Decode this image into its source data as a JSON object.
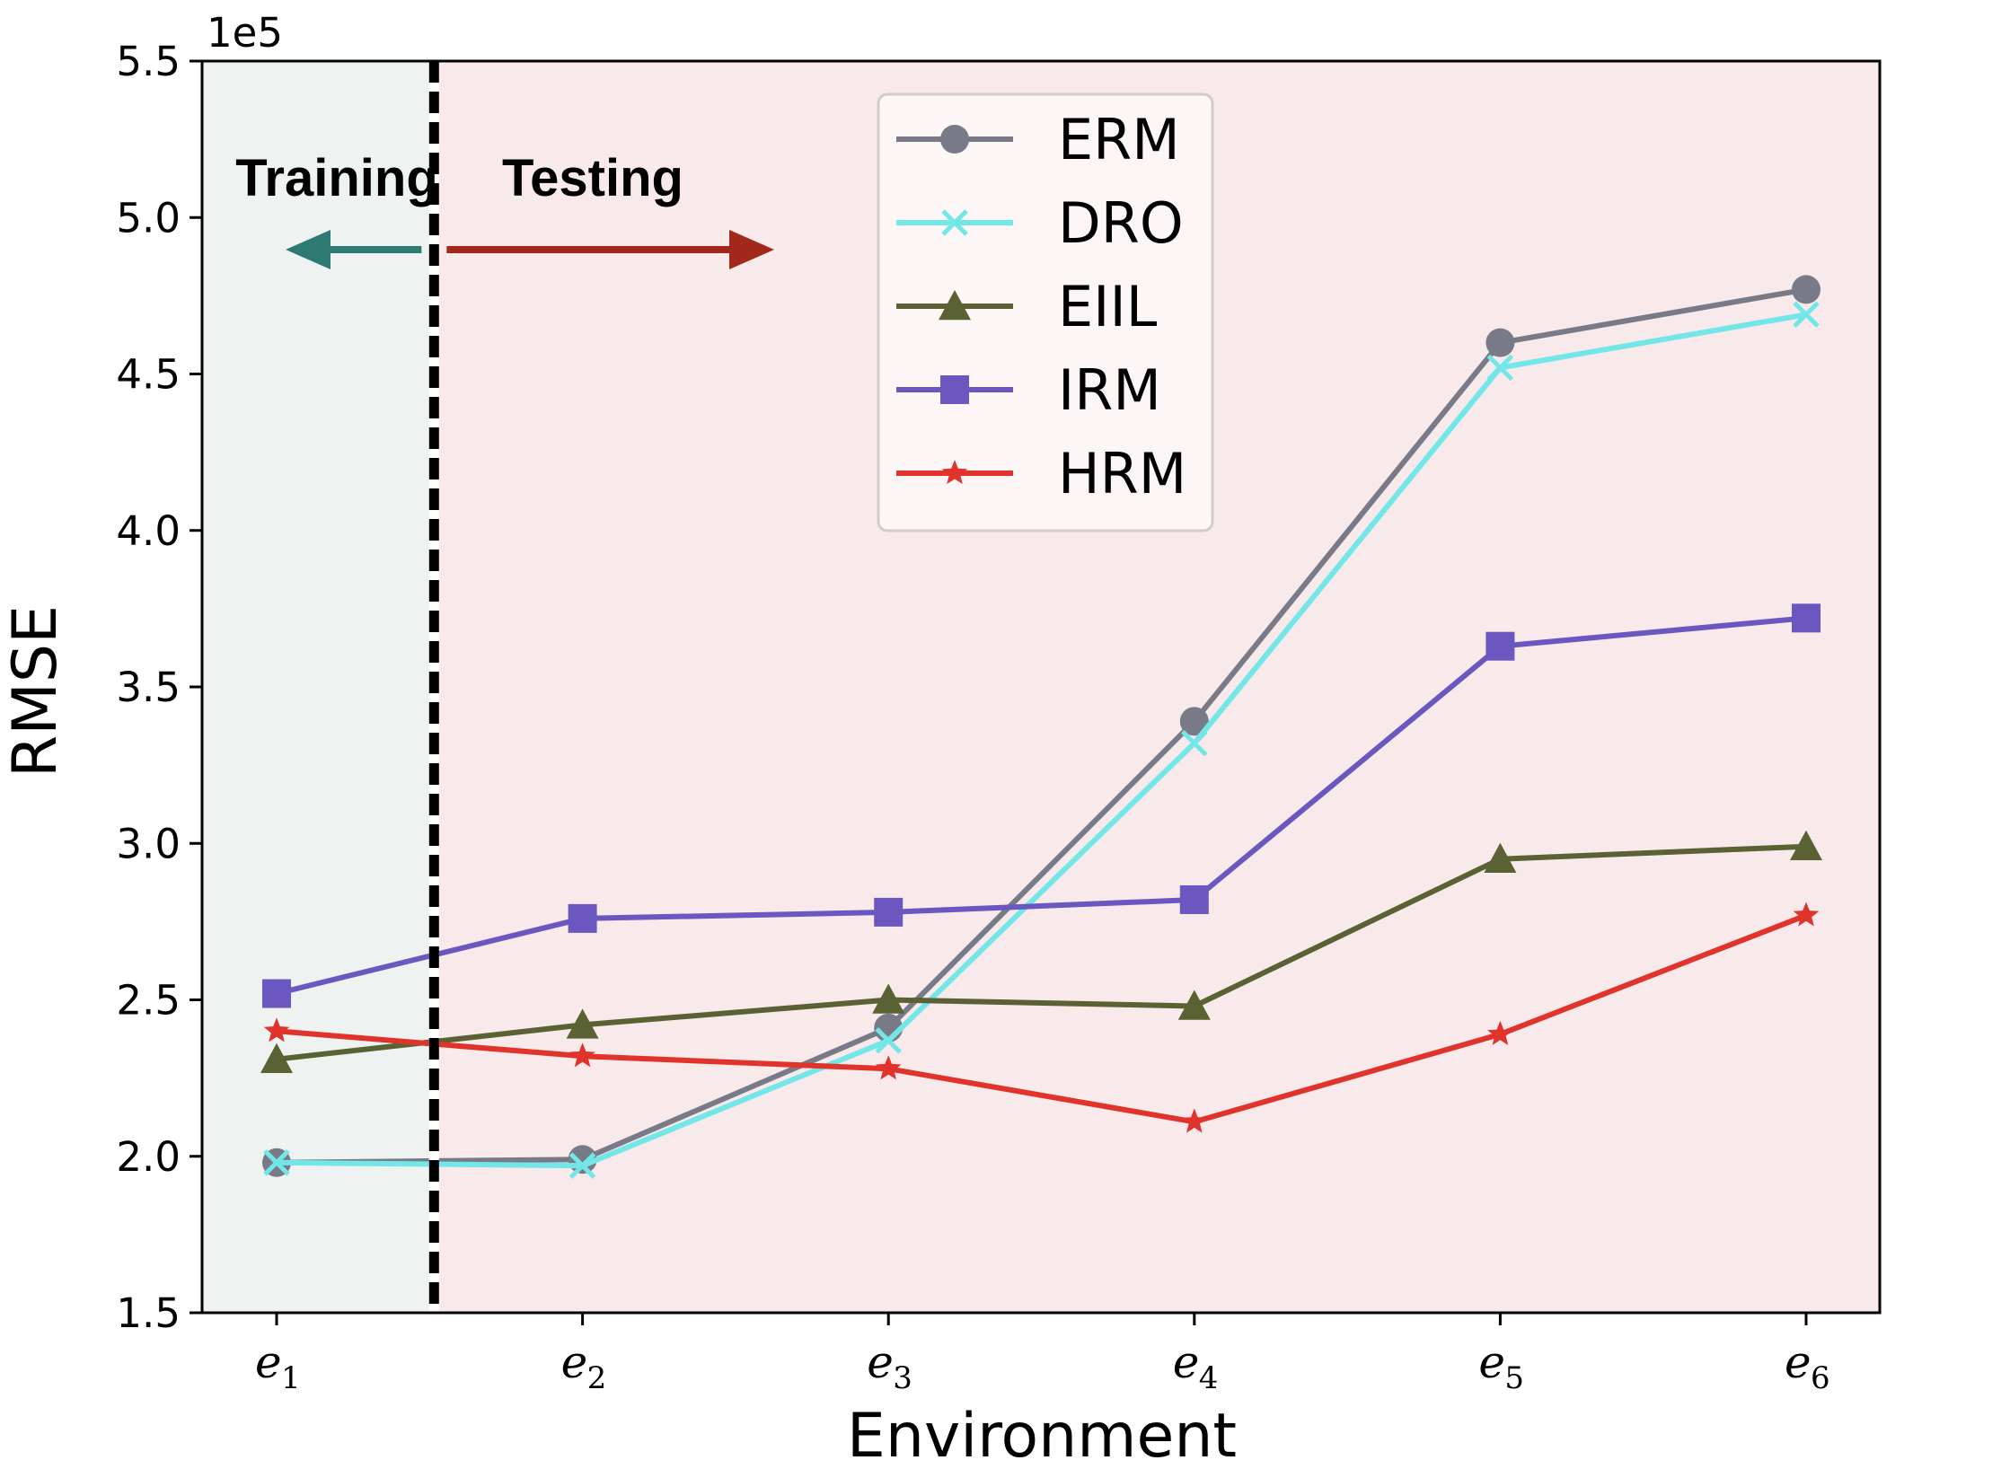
{
  "chart_data": {
    "type": "line",
    "xlabel": "Environment",
    "ylabel": "RMSE",
    "y_exponent_label": "1e5",
    "categories": [
      {
        "base": "e",
        "sub": "1"
      },
      {
        "base": "e",
        "sub": "2"
      },
      {
        "base": "e",
        "sub": "3"
      },
      {
        "base": "e",
        "sub": "4"
      },
      {
        "base": "e",
        "sub": "5"
      },
      {
        "base": "e",
        "sub": "6"
      }
    ],
    "ylim": [
      1.5,
      5.5
    ],
    "yticks": [
      "1.5",
      "2.0",
      "2.5",
      "3.0",
      "3.5",
      "4.0",
      "4.5",
      "5.0",
      "5.5"
    ],
    "legend_position": "top-center",
    "grid": false,
    "regions": {
      "training_label": "Training",
      "testing_label": "Testing",
      "split_between_categories": [
        1,
        2
      ],
      "training_color": "#eef3f1",
      "testing_color": "#f8eaea",
      "training_arrow_color": "#2e7a73",
      "testing_arrow_color": "#a3281c"
    },
    "series": [
      {
        "name": "ERM",
        "color": "#787b87",
        "marker": "circle",
        "values": [
          1.98,
          1.99,
          2.41,
          3.39,
          4.6,
          4.77
        ]
      },
      {
        "name": "DRO",
        "color": "#73e6e8",
        "marker": "x",
        "values": [
          1.98,
          1.97,
          2.37,
          3.32,
          4.52,
          4.69
        ]
      },
      {
        "name": "EIIL",
        "color": "#5a6233",
        "marker": "triangle",
        "values": [
          2.31,
          2.42,
          2.5,
          2.48,
          2.95,
          2.99
        ]
      },
      {
        "name": "IRM",
        "color": "#6a58c0",
        "marker": "square",
        "values": [
          2.52,
          2.76,
          2.78,
          2.82,
          3.63,
          3.72
        ]
      },
      {
        "name": "HRM",
        "color": "#e0332c",
        "marker": "star",
        "values": [
          2.4,
          2.32,
          2.28,
          2.11,
          2.39,
          2.77
        ]
      }
    ]
  }
}
